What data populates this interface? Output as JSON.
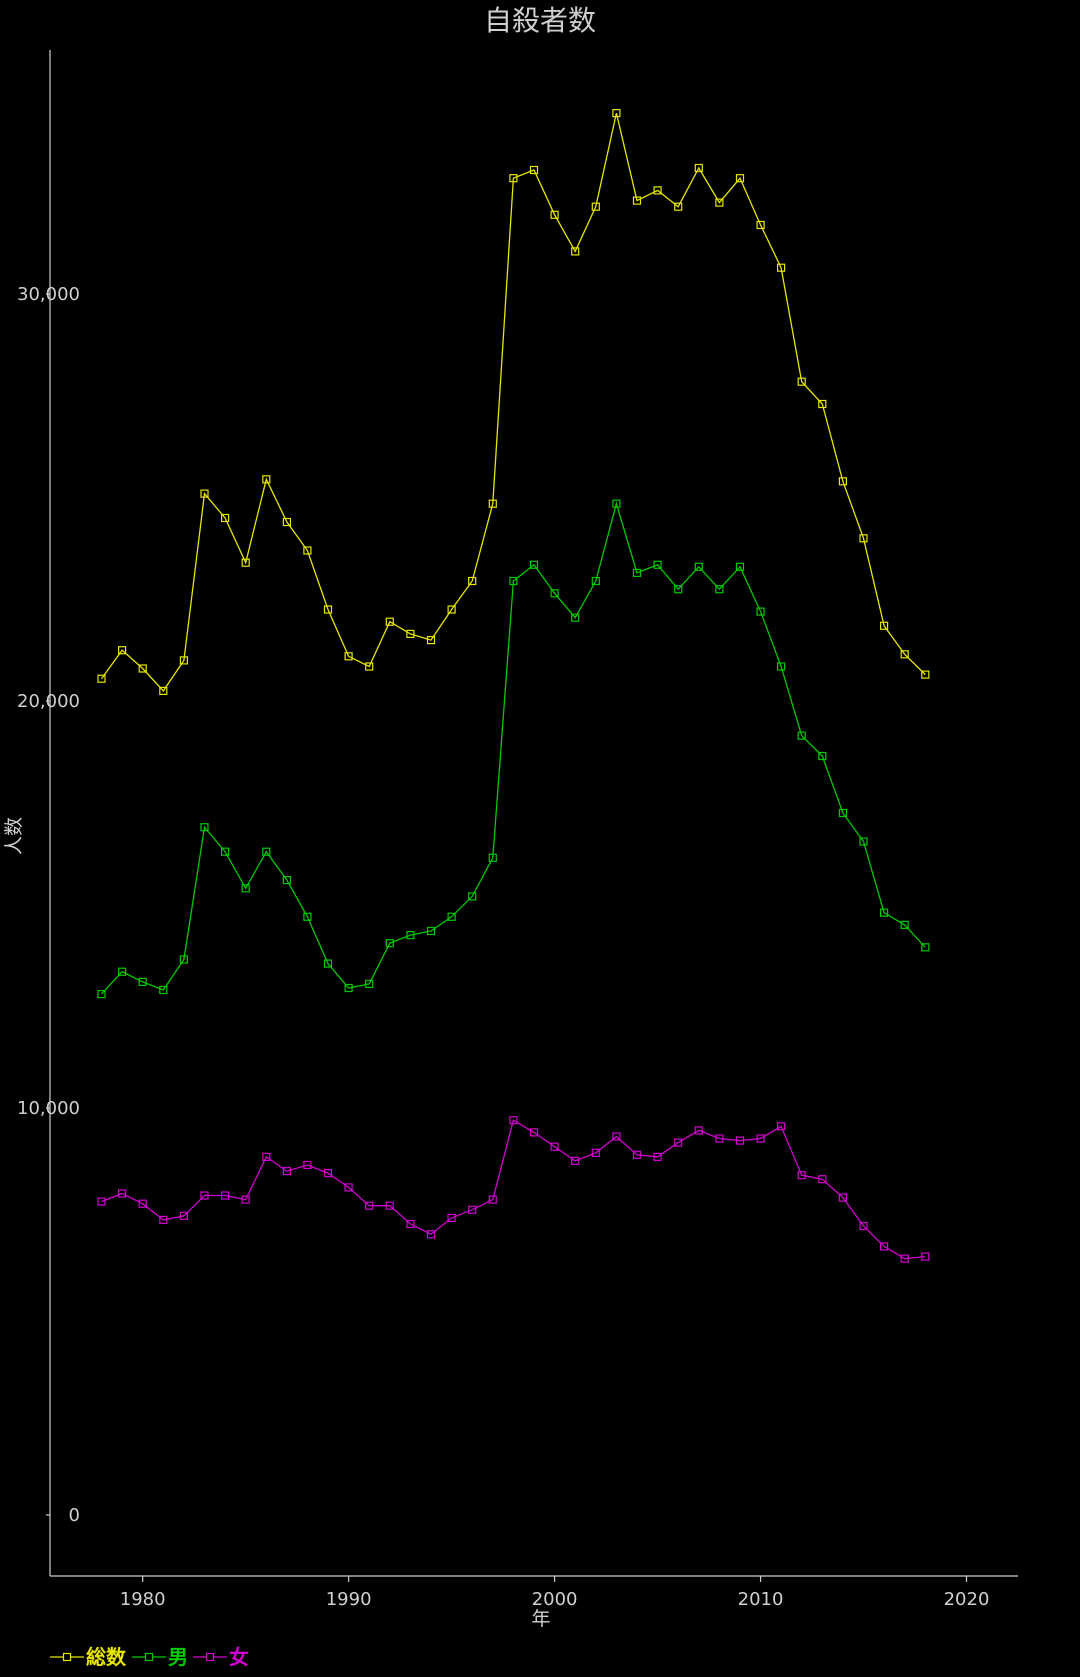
{
  "chart_data": {
    "type": "line",
    "title": "自殺者数",
    "xlabel": "年",
    "ylabel": "人数",
    "xlim": [
      1975.5,
      2022.5
    ],
    "ylim": [
      -1500,
      36000
    ],
    "x_ticks": [
      1980,
      1990,
      2000,
      2010,
      2020
    ],
    "x_tick_labels": [
      "1980",
      "1990",
      "2000",
      "2010",
      "2020"
    ],
    "y_ticks": [
      0,
      10000,
      20000,
      30000
    ],
    "y_tick_labels": [
      "0",
      "10,000",
      "20,000",
      "30,000"
    ],
    "grid": false,
    "legend_position": "bottom-left",
    "x": [
      1978,
      1979,
      1980,
      1981,
      1982,
      1983,
      1984,
      1985,
      1986,
      1987,
      1988,
      1989,
      1990,
      1991,
      1992,
      1993,
      1994,
      1995,
      1996,
      1997,
      1998,
      1999,
      2000,
      2001,
      2002,
      2003,
      2004,
      2005,
      2006,
      2007,
      2008,
      2009,
      2010,
      2011,
      2012,
      2013,
      2014,
      2015,
      2016,
      2017,
      2018
    ],
    "series": [
      {
        "name": "総数",
        "color": "#e6e600",
        "values": [
          20550,
          21250,
          20800,
          20250,
          21000,
          25100,
          24500,
          23400,
          25450,
          24400,
          23700,
          22250,
          21100,
          20850,
          21950,
          21650,
          21500,
          22250,
          22950,
          24850,
          32850,
          33050,
          31950,
          31050,
          32150,
          34450,
          32300,
          32550,
          32150,
          33100,
          32250,
          32850,
          31700,
          30650,
          27850,
          27300,
          25400,
          24000,
          21850,
          21150,
          20650
        ]
      },
      {
        "name": "男",
        "color": "#00c800",
        "values": [
          12800,
          13350,
          13100,
          12900,
          13650,
          16900,
          16300,
          15400,
          16300,
          15600,
          14700,
          13550,
          12950,
          13050,
          14050,
          14250,
          14350,
          14700,
          15200,
          16150,
          22950,
          23350,
          22650,
          22050,
          22950,
          24850,
          23150,
          23350,
          22750,
          23300,
          22750,
          23300,
          22200,
          20850,
          19150,
          18650,
          17250,
          16550,
          14800,
          14500,
          13950
        ]
      },
      {
        "name": "女",
        "color": "#d000d0",
        "values": [
          7700,
          7900,
          7650,
          7250,
          7350,
          7850,
          7850,
          7750,
          8800,
          8450,
          8600,
          8400,
          8050,
          7600,
          7600,
          7150,
          6900,
          7300,
          7500,
          7750,
          9700,
          9400,
          9050,
          8700,
          8900,
          9300,
          8850,
          8800,
          9150,
          9450,
          9250,
          9200,
          9250,
          9550,
          8350,
          8250,
          7800,
          7100,
          6600,
          6300,
          6350
        ]
      }
    ]
  }
}
